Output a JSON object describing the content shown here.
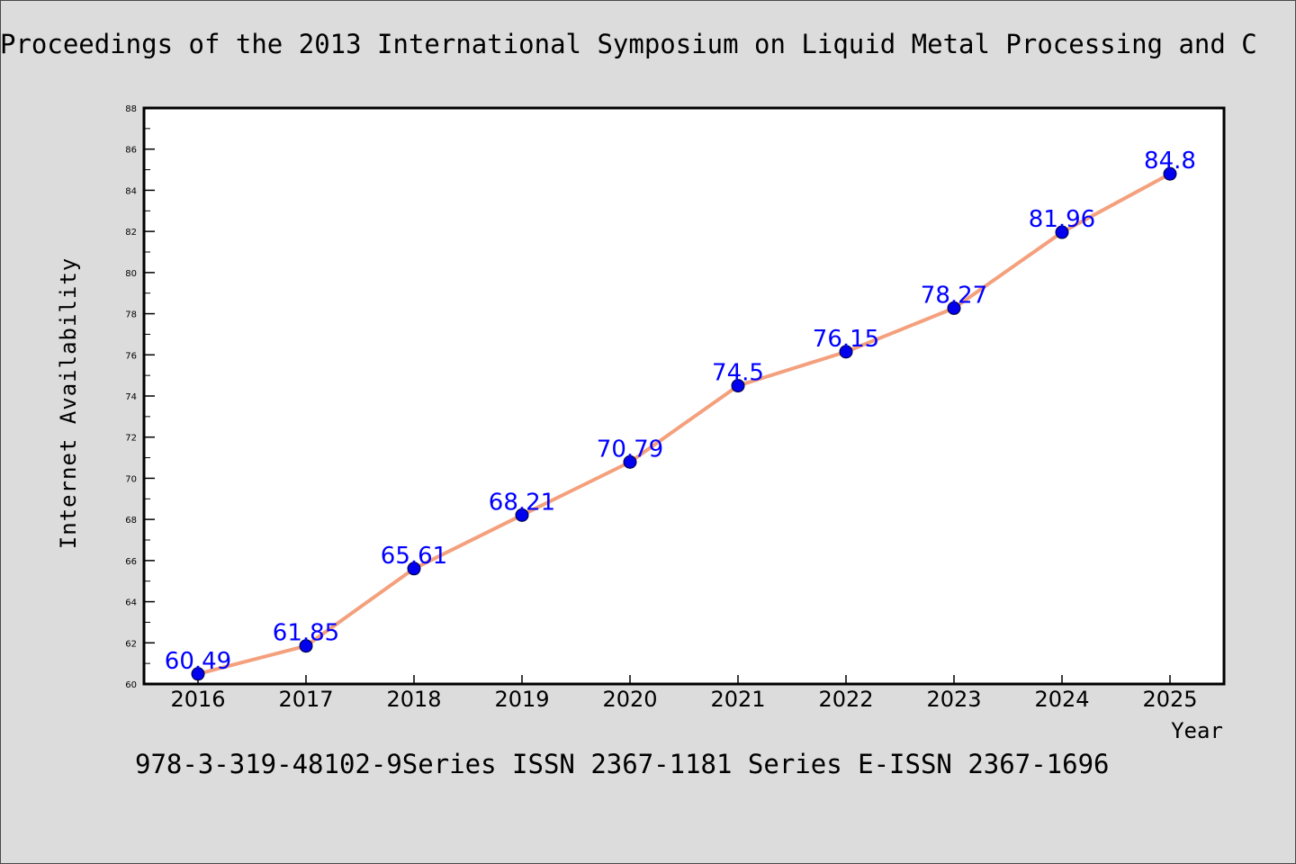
{
  "title": "Proceedings of the 2013 International Symposium on Liquid Metal Processing and C",
  "footer": "978-3-319-48102-9Series ISSN 2367-1181 Series E-ISSN 2367-1696",
  "colors": {
    "background": "#dcdcdc",
    "plot_background": "#ffffff",
    "line": "#f4a07c",
    "marker": "#0000ee",
    "data_label": "#0000ff"
  },
  "chart_data": {
    "type": "line",
    "categories": [
      "2016",
      "2017",
      "2018",
      "2019",
      "2020",
      "2021",
      "2022",
      "2023",
      "2024",
      "2025"
    ],
    "values": [
      60.49,
      61.85,
      65.61,
      68.21,
      70.79,
      74.5,
      76.15,
      78.27,
      81.96,
      84.8
    ],
    "data_labels": [
      "60.49",
      "61.85",
      "65.61",
      "68.21",
      "70.79",
      "74.5",
      "76.15",
      "78.27",
      "81.96",
      "84.8"
    ],
    "xlabel": "Year",
    "ylabel": "Internet Availability",
    "ylim": [
      60,
      88
    ],
    "y_ticks": [
      60,
      62,
      64,
      66,
      68,
      70,
      72,
      74,
      76,
      78,
      80,
      82,
      84,
      86,
      88
    ],
    "grid": false,
    "legend": "none"
  }
}
